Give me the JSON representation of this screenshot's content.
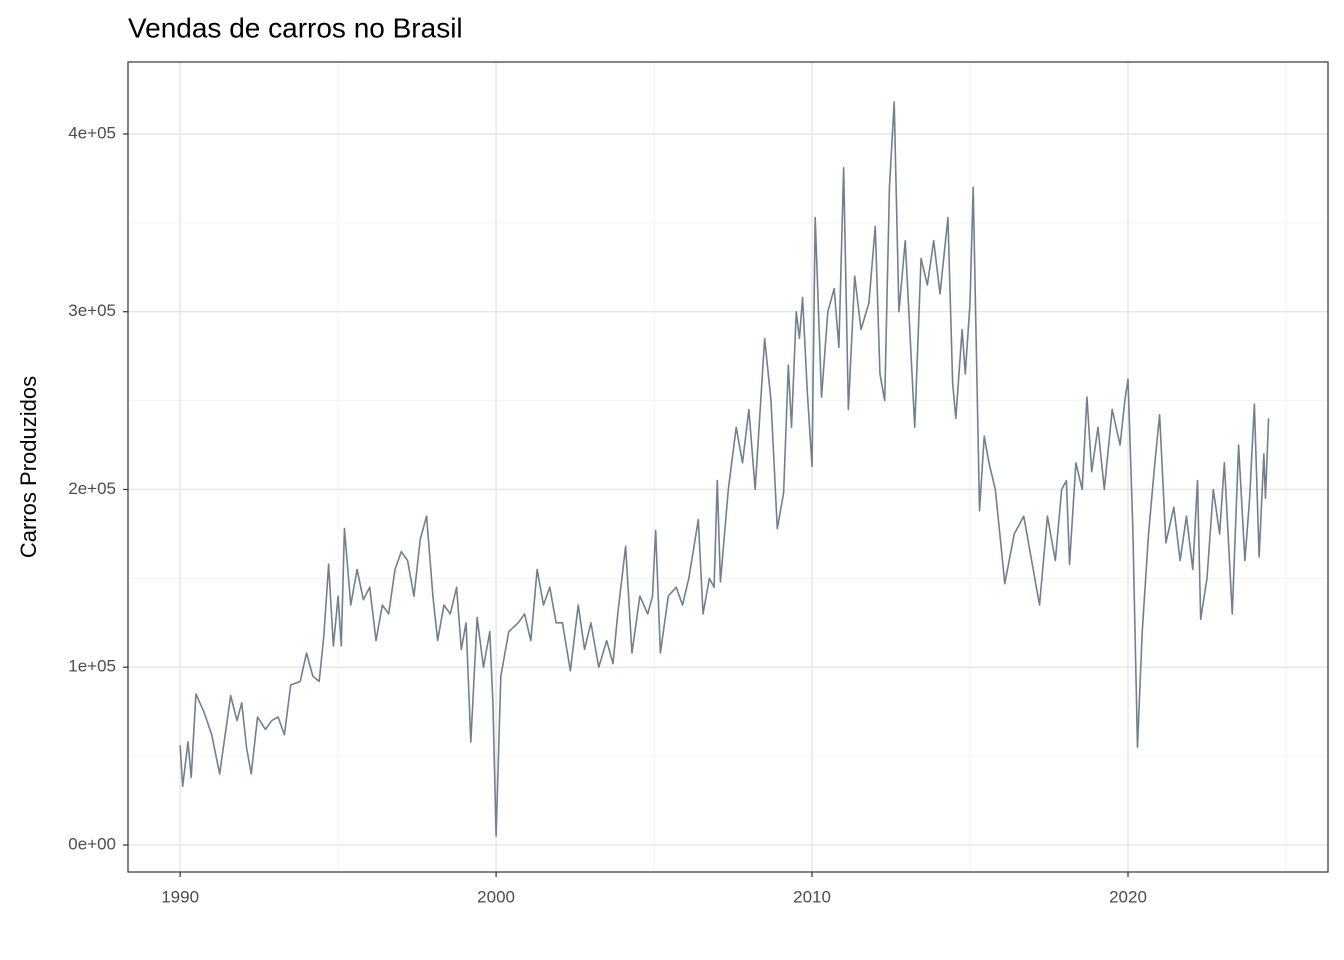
{
  "chart_data": {
    "type": "line",
    "title": "Vendas de carros no Brasil",
    "y_label": "Carros Produzidos",
    "xlim": [
      1988.35,
      2026.33
    ],
    "xticks": [
      1990,
      2000,
      2010,
      2020
    ],
    "ylim": [
      -15200,
      440500
    ],
    "yticks": [
      {
        "value": 0,
        "label": "0e+00"
      },
      {
        "value": 100000,
        "label": "1e+05"
      },
      {
        "value": 200000,
        "label": "2e+05"
      },
      {
        "value": 300000,
        "label": "3e+05"
      },
      {
        "value": 400000,
        "label": "4e+05"
      }
    ],
    "grid": true,
    "series": [
      {
        "color": "#708090",
        "x": [
          1990.0,
          1990.08,
          1990.25,
          1990.35,
          1990.5,
          1990.75,
          1991.0,
          1991.25,
          1991.6,
          1991.8,
          1991.95,
          1992.1,
          1992.25,
          1992.45,
          1992.7,
          1992.9,
          1993.1,
          1993.3,
          1993.5,
          1993.8,
          1994.0,
          1994.2,
          1994.4,
          1994.55,
          1994.7,
          1994.85,
          1995.0,
          1995.1,
          1995.2,
          1995.4,
          1995.6,
          1995.8,
          1996.0,
          1996.2,
          1996.4,
          1996.6,
          1996.8,
          1997.0,
          1997.2,
          1997.4,
          1997.6,
          1997.8,
          1998.0,
          1998.15,
          1998.35,
          1998.55,
          1998.75,
          1998.9,
          1999.05,
          1999.2,
          1999.4,
          1999.6,
          1999.8,
          1999.9,
          2000.0,
          2000.15,
          2000.4,
          2000.7,
          2000.9,
          2001.1,
          2001.3,
          2001.5,
          2001.7,
          2001.9,
          2002.1,
          2002.35,
          2002.6,
          2002.8,
          2003.0,
          2003.25,
          2003.5,
          2003.7,
          2003.85,
          2004.1,
          2004.3,
          2004.55,
          2004.8,
          2004.95,
          2005.05,
          2005.2,
          2005.45,
          2005.7,
          2005.9,
          2006.1,
          2006.4,
          2006.55,
          2006.75,
          2006.9,
          2007.0,
          2007.1,
          2007.35,
          2007.6,
          2007.8,
          2008.0,
          2008.2,
          2008.5,
          2008.7,
          2008.9,
          2009.1,
          2009.25,
          2009.35,
          2009.5,
          2009.6,
          2009.7,
          2009.85,
          2010.0,
          2010.1,
          2010.3,
          2010.5,
          2010.7,
          2010.85,
          2011.0,
          2011.15,
          2011.35,
          2011.55,
          2011.8,
          2012.0,
          2012.15,
          2012.3,
          2012.45,
          2012.6,
          2012.75,
          2012.95,
          2013.25,
          2013.45,
          2013.65,
          2013.85,
          2014.05,
          2014.3,
          2014.45,
          2014.55,
          2014.75,
          2014.85,
          2015.0,
          2015.1,
          2015.3,
          2015.45,
          2015.6,
          2015.8,
          2016.0,
          2016.1,
          2016.4,
          2016.7,
          2017.0,
          2017.2,
          2017.45,
          2017.7,
          2017.9,
          2018.05,
          2018.15,
          2018.35,
          2018.55,
          2018.7,
          2018.85,
          2019.05,
          2019.25,
          2019.5,
          2019.75,
          2019.9,
          2020.0,
          2020.15,
          2020.3,
          2020.45,
          2020.65,
          2020.85,
          2021.0,
          2021.2,
          2021.45,
          2021.65,
          2021.85,
          2022.05,
          2022.2,
          2022.3,
          2022.5,
          2022.7,
          2022.9,
          2023.05,
          2023.3,
          2023.5,
          2023.7,
          2023.85,
          2024.0,
          2024.15,
          2024.3,
          2024.35,
          2024.45
        ],
        "values": [
          56000,
          33000,
          58000,
          38000,
          85000,
          75000,
          62000,
          40000,
          84000,
          70000,
          80000,
          55000,
          40000,
          72000,
          65000,
          70000,
          72000,
          62000,
          90000,
          92000,
          108000,
          95000,
          92000,
          118000,
          158000,
          112000,
          140000,
          112000,
          178000,
          135000,
          155000,
          138000,
          145000,
          115000,
          135000,
          130000,
          155000,
          165000,
          160000,
          140000,
          172000,
          185000,
          140000,
          115000,
          135000,
          130000,
          145000,
          110000,
          125000,
          58000,
          128000,
          100000,
          120000,
          80000,
          5000,
          95000,
          120000,
          125000,
          130000,
          115000,
          155000,
          135000,
          145000,
          125000,
          125000,
          98000,
          135000,
          110000,
          125000,
          100000,
          115000,
          102000,
          130000,
          168000,
          108000,
          140000,
          130000,
          140000,
          177000,
          108000,
          140000,
          145000,
          135000,
          150000,
          183000,
          130000,
          150000,
          145000,
          205000,
          148000,
          200000,
          235000,
          215000,
          245000,
          200000,
          285000,
          250000,
          178000,
          198000,
          270000,
          235000,
          300000,
          285000,
          308000,
          255000,
          213000,
          353000,
          252000,
          300000,
          313000,
          280000,
          381000,
          245000,
          320000,
          290000,
          305000,
          348000,
          265000,
          250000,
          370000,
          418000,
          300000,
          340000,
          235000,
          330000,
          315000,
          340000,
          310000,
          353000,
          260000,
          240000,
          290000,
          265000,
          305000,
          370000,
          188000,
          230000,
          215000,
          200000,
          165000,
          147000,
          175000,
          185000,
          155000,
          135000,
          185000,
          160000,
          200000,
          205000,
          158000,
          215000,
          200000,
          252000,
          210000,
          235000,
          200000,
          245000,
          225000,
          250000,
          262000,
          180000,
          55000,
          120000,
          175000,
          215000,
          242000,
          170000,
          190000,
          160000,
          185000,
          155000,
          205000,
          127000,
          150000,
          200000,
          175000,
          215000,
          130000,
          225000,
          160000,
          195000,
          248000,
          162000,
          220000,
          195000,
          240000
        ]
      }
    ]
  }
}
